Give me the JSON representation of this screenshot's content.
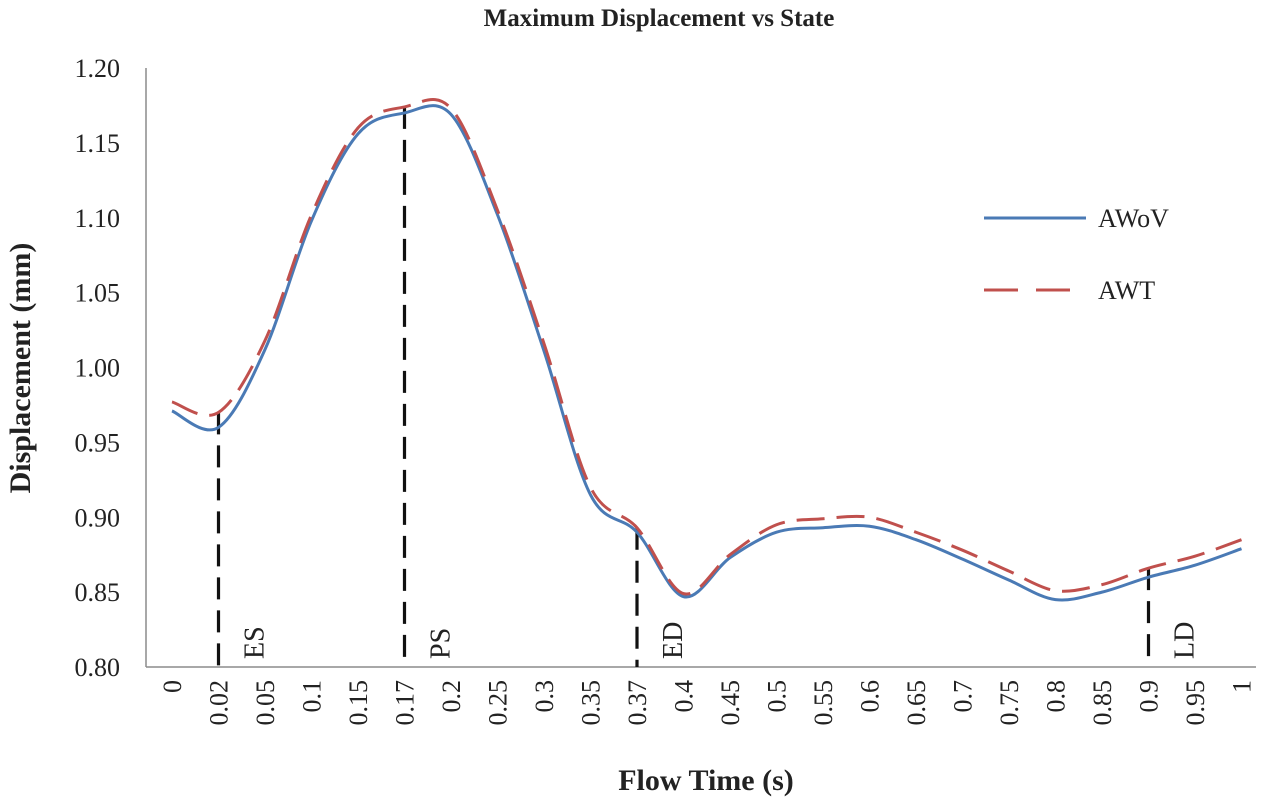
{
  "chart_data": {
    "type": "line",
    "title": "Maximum Displacement vs State",
    "xlabel": "Flow Time (s)",
    "ylabel": "Displacement (mm)",
    "ylim": [
      0.8,
      1.2
    ],
    "yticks": [
      "0.80",
      "0.85",
      "0.90",
      "0.95",
      "1.00",
      "1.05",
      "1.10",
      "1.15",
      "1.20"
    ],
    "ytick_values": [
      0.8,
      0.85,
      0.9,
      0.95,
      1.0,
      1.05,
      1.1,
      1.15,
      1.2
    ],
    "xticks": [
      "0",
      "0.02",
      "0.05",
      "0.1",
      "0.15",
      "0.17",
      "0.2",
      "0.25",
      "0.3",
      "0.35",
      "0.37",
      "0.4",
      "0.45",
      "0.5",
      "0.55",
      "0.6",
      "0.65",
      "0.7",
      "0.75",
      "0.8",
      "0.85",
      "0.9",
      "0.95",
      "1"
    ],
    "grid": false,
    "legend_position": "right",
    "series": [
      {
        "name": "AWoV",
        "color": "#4a7ab5",
        "style": "solid",
        "values": [
          0.971,
          0.96,
          1.012,
          1.098,
          1.156,
          1.17,
          1.169,
          1.102,
          1.011,
          0.915,
          0.89,
          0.847,
          0.873,
          0.89,
          0.893,
          0.894,
          0.885,
          0.872,
          0.858,
          0.845,
          0.85,
          0.86,
          0.868,
          0.879
        ]
      },
      {
        "name": "AWT",
        "color": "#c0504d",
        "style": "dashed",
        "values": [
          0.977,
          0.97,
          1.018,
          1.102,
          1.16,
          1.174,
          1.173,
          1.105,
          1.016,
          0.92,
          0.893,
          0.849,
          0.875,
          0.895,
          0.899,
          0.9,
          0.89,
          0.878,
          0.864,
          0.851,
          0.855,
          0.866,
          0.874,
          0.885
        ]
      }
    ],
    "markers": [
      {
        "label": "ES",
        "x_index": 1
      },
      {
        "label": "PS",
        "x_index": 5
      },
      {
        "label": "ED",
        "x_index": 10
      },
      {
        "label": "LD",
        "x_index": 21
      }
    ]
  }
}
